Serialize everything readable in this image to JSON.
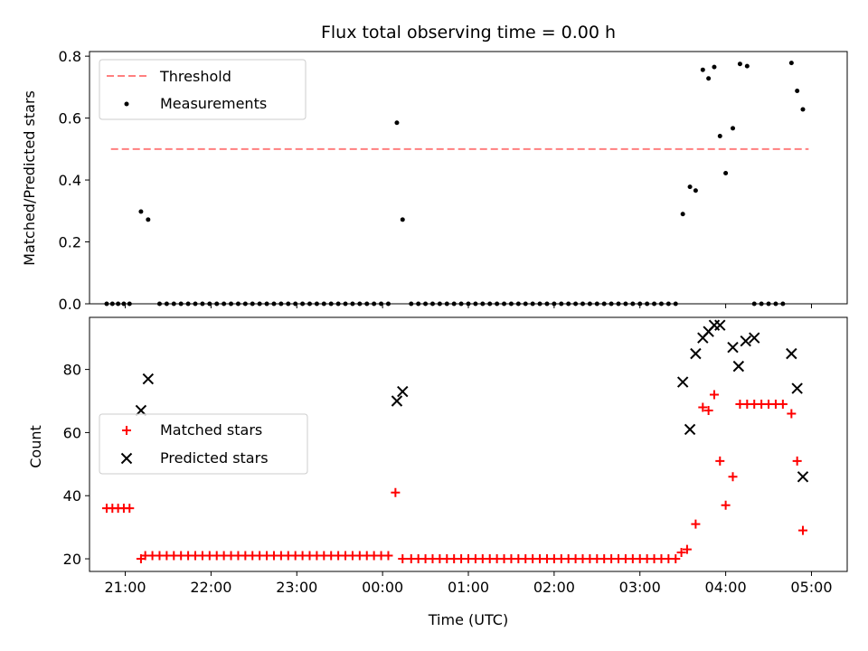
{
  "chart_data": {
    "title": "Flux total observing time = 0.00 h",
    "xlabel": "Time (UTC)",
    "x_unit": "UTC time (hours, wraps past midnight)",
    "xlim": [
      "20:35",
      "05:25"
    ],
    "xticks": [
      "21:00",
      "22:00",
      "23:00",
      "00:00",
      "01:00",
      "02:00",
      "03:00",
      "04:00",
      "05:00"
    ],
    "panels": [
      {
        "type": "scatter",
        "ylabel": "Matched/Predicted stars",
        "ylim": [
          0,
          0.815
        ],
        "yticks": [
          "0.0",
          "0.2",
          "0.4",
          "0.6",
          "0.8"
        ],
        "legend_placement": "upper-left",
        "threshold": {
          "name": "Threshold",
          "value": 0.5,
          "x_range": [
            "20:50",
            "04:58"
          ],
          "color": "#ff7f7f",
          "style": "dashed"
        },
        "series": [
          {
            "name": "Measurements",
            "color": "#000000",
            "marker": "dot",
            "points": [
              [
                "20:47",
                0
              ],
              [
                "20:51",
                0
              ],
              [
                "20:55",
                0
              ],
              [
                "20:59",
                0
              ],
              [
                "21:03",
                0
              ],
              [
                "21:11",
                0.298
              ],
              [
                "21:16",
                0.272
              ],
              [
                "21:24",
                0
              ],
              [
                "21:29",
                0
              ],
              [
                "21:34",
                0
              ],
              [
                "21:39",
                0
              ],
              [
                "21:44",
                0
              ],
              [
                "21:49",
                0
              ],
              [
                "21:54",
                0
              ],
              [
                "21:59",
                0
              ],
              [
                "22:04",
                0
              ],
              [
                "22:09",
                0
              ],
              [
                "22:14",
                0
              ],
              [
                "22:19",
                0
              ],
              [
                "22:24",
                0
              ],
              [
                "22:29",
                0
              ],
              [
                "22:34",
                0
              ],
              [
                "22:39",
                0
              ],
              [
                "22:44",
                0
              ],
              [
                "22:49",
                0
              ],
              [
                "22:54",
                0
              ],
              [
                "22:59",
                0
              ],
              [
                "23:04",
                0
              ],
              [
                "23:09",
                0
              ],
              [
                "23:14",
                0
              ],
              [
                "23:19",
                0
              ],
              [
                "23:24",
                0
              ],
              [
                "23:29",
                0
              ],
              [
                "23:34",
                0
              ],
              [
                "23:39",
                0
              ],
              [
                "23:44",
                0
              ],
              [
                "23:49",
                0
              ],
              [
                "23:54",
                0
              ],
              [
                "23:59",
                0
              ],
              [
                "00:04",
                0
              ],
              [
                "00:10",
                0.585
              ],
              [
                "00:14",
                0.272
              ],
              [
                "00:20",
                0
              ],
              [
                "00:25",
                0
              ],
              [
                "00:30",
                0
              ],
              [
                "00:35",
                0
              ],
              [
                "00:40",
                0
              ],
              [
                "00:45",
                0
              ],
              [
                "00:50",
                0
              ],
              [
                "00:55",
                0
              ],
              [
                "01:00",
                0
              ],
              [
                "01:05",
                0
              ],
              [
                "01:10",
                0
              ],
              [
                "01:15",
                0
              ],
              [
                "01:20",
                0
              ],
              [
                "01:25",
                0
              ],
              [
                "01:30",
                0
              ],
              [
                "01:35",
                0
              ],
              [
                "01:40",
                0
              ],
              [
                "01:45",
                0
              ],
              [
                "01:50",
                0
              ],
              [
                "01:55",
                0
              ],
              [
                "02:00",
                0
              ],
              [
                "02:05",
                0
              ],
              [
                "02:10",
                0
              ],
              [
                "02:15",
                0
              ],
              [
                "02:20",
                0
              ],
              [
                "02:25",
                0
              ],
              [
                "02:30",
                0
              ],
              [
                "02:35",
                0
              ],
              [
                "02:40",
                0
              ],
              [
                "02:45",
                0
              ],
              [
                "02:50",
                0
              ],
              [
                "02:55",
                0
              ],
              [
                "03:00",
                0
              ],
              [
                "03:05",
                0
              ],
              [
                "03:10",
                0
              ],
              [
                "03:15",
                0
              ],
              [
                "03:20",
                0
              ],
              [
                "03:25",
                0
              ],
              [
                "03:30",
                0.29
              ],
              [
                "03:35",
                0.378
              ],
              [
                "03:39",
                0.366
              ],
              [
                "03:44",
                0.756
              ],
              [
                "03:48",
                0.728
              ],
              [
                "03:52",
                0.765
              ],
              [
                "03:56",
                0.542
              ],
              [
                "04:00",
                0.422
              ],
              [
                "04:05",
                0.567
              ],
              [
                "04:10",
                0.775
              ],
              [
                "04:15",
                0.768
              ],
              [
                "04:20",
                0
              ],
              [
                "04:25",
                0
              ],
              [
                "04:30",
                0
              ],
              [
                "04:35",
                0
              ],
              [
                "04:40",
                0
              ],
              [
                "04:46",
                0.778
              ],
              [
                "04:50",
                0.688
              ],
              [
                "04:54",
                0.628
              ]
            ]
          }
        ]
      },
      {
        "type": "scatter",
        "ylabel": "Count",
        "ylim": [
          16,
          96.5
        ],
        "yticks": [
          "20",
          "40",
          "60",
          "80"
        ],
        "legend_placement": "center-left",
        "series": [
          {
            "name": "Matched stars",
            "color": "#ff0000",
            "marker": "plus",
            "points": [
              [
                "20:47",
                36
              ],
              [
                "20:51",
                36
              ],
              [
                "20:55",
                36
              ],
              [
                "20:59",
                36
              ],
              [
                "21:03",
                36
              ],
              [
                "21:11",
                20
              ],
              [
                "21:14",
                21
              ],
              [
                "21:19",
                21
              ],
              [
                "21:24",
                21
              ],
              [
                "21:29",
                21
              ],
              [
                "21:34",
                21
              ],
              [
                "21:39",
                21
              ],
              [
                "21:44",
                21
              ],
              [
                "21:49",
                21
              ],
              [
                "21:54",
                21
              ],
              [
                "21:59",
                21
              ],
              [
                "22:04",
                21
              ],
              [
                "22:09",
                21
              ],
              [
                "22:14",
                21
              ],
              [
                "22:19",
                21
              ],
              [
                "22:24",
                21
              ],
              [
                "22:29",
                21
              ],
              [
                "22:34",
                21
              ],
              [
                "22:39",
                21
              ],
              [
                "22:44",
                21
              ],
              [
                "22:49",
                21
              ],
              [
                "22:54",
                21
              ],
              [
                "22:59",
                21
              ],
              [
                "23:04",
                21
              ],
              [
                "23:09",
                21
              ],
              [
                "23:14",
                21
              ],
              [
                "23:19",
                21
              ],
              [
                "23:24",
                21
              ],
              [
                "23:29",
                21
              ],
              [
                "23:34",
                21
              ],
              [
                "23:39",
                21
              ],
              [
                "23:44",
                21
              ],
              [
                "23:49",
                21
              ],
              [
                "23:54",
                21
              ],
              [
                "23:59",
                21
              ],
              [
                "00:04",
                21
              ],
              [
                "00:09",
                41
              ],
              [
                "00:14",
                20
              ],
              [
                "00:20",
                20
              ],
              [
                "00:25",
                20
              ],
              [
                "00:30",
                20
              ],
              [
                "00:35",
                20
              ],
              [
                "00:40",
                20
              ],
              [
                "00:45",
                20
              ],
              [
                "00:50",
                20
              ],
              [
                "00:55",
                20
              ],
              [
                "01:00",
                20
              ],
              [
                "01:05",
                20
              ],
              [
                "01:10",
                20
              ],
              [
                "01:15",
                20
              ],
              [
                "01:20",
                20
              ],
              [
                "01:25",
                20
              ],
              [
                "01:30",
                20
              ],
              [
                "01:35",
                20
              ],
              [
                "01:40",
                20
              ],
              [
                "01:45",
                20
              ],
              [
                "01:50",
                20
              ],
              [
                "01:55",
                20
              ],
              [
                "02:00",
                20
              ],
              [
                "02:05",
                20
              ],
              [
                "02:10",
                20
              ],
              [
                "02:15",
                20
              ],
              [
                "02:20",
                20
              ],
              [
                "02:25",
                20
              ],
              [
                "02:30",
                20
              ],
              [
                "02:35",
                20
              ],
              [
                "02:40",
                20
              ],
              [
                "02:45",
                20
              ],
              [
                "02:50",
                20
              ],
              [
                "02:55",
                20
              ],
              [
                "03:00",
                20
              ],
              [
                "03:05",
                20
              ],
              [
                "03:10",
                20
              ],
              [
                "03:15",
                20
              ],
              [
                "03:20",
                20
              ],
              [
                "03:25",
                20
              ],
              [
                "03:29",
                22
              ],
              [
                "03:33",
                23
              ],
              [
                "03:39",
                31
              ],
              [
                "03:44",
                68
              ],
              [
                "03:48",
                67
              ],
              [
                "03:52",
                72
              ],
              [
                "03:56",
                51
              ],
              [
                "04:00",
                37
              ],
              [
                "04:05",
                46
              ],
              [
                "04:10",
                69
              ],
              [
                "04:15",
                69
              ],
              [
                "04:20",
                69
              ],
              [
                "04:25",
                69
              ],
              [
                "04:30",
                69
              ],
              [
                "04:35",
                69
              ],
              [
                "04:40",
                69
              ],
              [
                "04:46",
                66
              ],
              [
                "04:50",
                51
              ],
              [
                "04:54",
                29
              ]
            ]
          },
          {
            "name": "Predicted stars",
            "color": "#000000",
            "marker": "x",
            "points": [
              [
                "21:11",
                67
              ],
              [
                "21:16",
                77
              ],
              [
                "00:10",
                70
              ],
              [
                "00:14",
                73
              ],
              [
                "03:30",
                76
              ],
              [
                "03:35",
                61
              ],
              [
                "03:39",
                85
              ],
              [
                "03:44",
                90
              ],
              [
                "03:48",
                92
              ],
              [
                "03:52",
                94
              ],
              [
                "03:56",
                94
              ],
              [
                "04:05",
                87
              ],
              [
                "04:09",
                81
              ],
              [
                "04:14",
                89
              ],
              [
                "04:20",
                90
              ],
              [
                "04:46",
                85
              ],
              [
                "04:50",
                74
              ],
              [
                "04:54",
                46
              ]
            ]
          }
        ]
      }
    ]
  }
}
